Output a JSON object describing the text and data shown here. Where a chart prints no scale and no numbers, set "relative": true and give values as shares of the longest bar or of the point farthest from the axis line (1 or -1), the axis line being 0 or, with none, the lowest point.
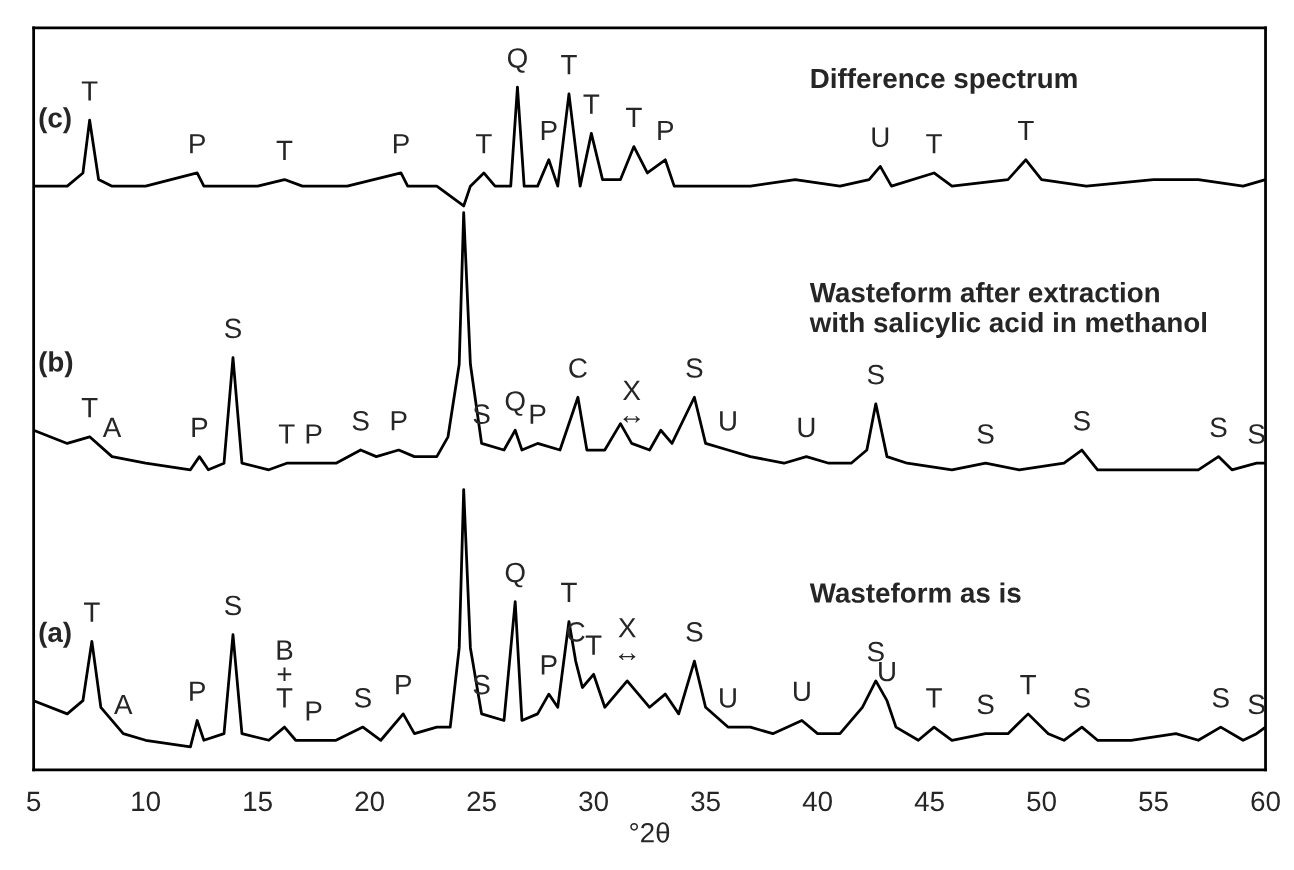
{
  "chart_data": {
    "type": "line",
    "relative": true,
    "xlabel": "°2θ",
    "xlim": [
      5,
      60
    ],
    "xticks": [
      5,
      10,
      15,
      20,
      25,
      30,
      35,
      40,
      45,
      50,
      55,
      60
    ],
    "tick_labels": "x",
    "grid": false,
    "legend": false,
    "series": [
      {
        "name": "(a)",
        "color": "#000000",
        "x": [
          5,
          6.5,
          7.2,
          7.6,
          8.0,
          9,
          10,
          12,
          12.3,
          12.6,
          13.5,
          13.9,
          14.3,
          15.5,
          16.2,
          16.7,
          17.5,
          18.5,
          19.7,
          20.5,
          21.5,
          22,
          23,
          23.6,
          24.0,
          24.2,
          24.5,
          25,
          26,
          26.5,
          26.8,
          27.5,
          28,
          28.4,
          28.9,
          29.2,
          29.5,
          30,
          30.5,
          31.5,
          32.5,
          33.2,
          33.8,
          34.5,
          35,
          36,
          37,
          38,
          39.3,
          40,
          41,
          42,
          42.6,
          43.1,
          43.5,
          44.5,
          45.2,
          46,
          47.5,
          48.5,
          49.4,
          50.3,
          51,
          51.8,
          52.5,
          54,
          56,
          57,
          58,
          59,
          59.6,
          60
        ],
        "values": [
          0.07,
          0.05,
          0.07,
          0.16,
          0.06,
          0.02,
          0.01,
          0,
          0.04,
          0.01,
          0.02,
          0.17,
          0.02,
          0.01,
          0.03,
          0.01,
          0.01,
          0.01,
          0.03,
          0.01,
          0.05,
          0.02,
          0.03,
          0.03,
          0.15,
          0.39,
          0.15,
          0.05,
          0.04,
          0.22,
          0.04,
          0.05,
          0.08,
          0.06,
          0.19,
          0.13,
          0.09,
          0.11,
          0.06,
          0.1,
          0.06,
          0.08,
          0.05,
          0.13,
          0.06,
          0.03,
          0.03,
          0.02,
          0.04,
          0.02,
          0.02,
          0.06,
          0.1,
          0.07,
          0.03,
          0.01,
          0.03,
          0.01,
          0.02,
          0.02,
          0.05,
          0.02,
          0.01,
          0.03,
          0.01,
          0.01,
          0.02,
          0.01,
          0.03,
          0.01,
          0.02,
          0.03
        ]
      },
      {
        "name": "(b)",
        "color": "#000000",
        "x": [
          5,
          6.5,
          7.5,
          8.5,
          10,
          12,
          12.4,
          12.8,
          13.5,
          13.9,
          14.3,
          15.5,
          16.3,
          17.5,
          18.5,
          19.6,
          20.3,
          21.3,
          22,
          23,
          23.5,
          24.0,
          24.2,
          24.5,
          25,
          26,
          26.5,
          26.8,
          27.5,
          28.5,
          29.3,
          29.7,
          30.5,
          31.2,
          31.7,
          32.5,
          33,
          33.5,
          34.5,
          35,
          36,
          37,
          38.5,
          39.5,
          40.5,
          41.5,
          42.2,
          42.6,
          43.1,
          44,
          46,
          47.5,
          49,
          51,
          51.8,
          52.5,
          55,
          57,
          57.9,
          58.5,
          59.6,
          60
        ],
        "values": [
          0.48,
          0.46,
          0.47,
          0.44,
          0.43,
          0.42,
          0.44,
          0.42,
          0.43,
          0.59,
          0.43,
          0.42,
          0.43,
          0.43,
          0.43,
          0.45,
          0.44,
          0.45,
          0.44,
          0.44,
          0.47,
          0.58,
          0.81,
          0.58,
          0.46,
          0.45,
          0.48,
          0.45,
          0.46,
          0.45,
          0.53,
          0.45,
          0.45,
          0.49,
          0.46,
          0.45,
          0.48,
          0.46,
          0.53,
          0.46,
          0.45,
          0.44,
          0.43,
          0.44,
          0.43,
          0.43,
          0.45,
          0.52,
          0.44,
          0.43,
          0.42,
          0.43,
          0.42,
          0.43,
          0.45,
          0.42,
          0.42,
          0.42,
          0.44,
          0.42,
          0.43,
          0.43
        ]
      },
      {
        "name": "(c)",
        "color": "#000000",
        "x": [
          5,
          6.5,
          7.2,
          7.5,
          7.9,
          8.5,
          10,
          12.3,
          12.6,
          14,
          15,
          16.2,
          17,
          19,
          21.4,
          21.7,
          23,
          24.2,
          24.5,
          25.1,
          25.6,
          26.3,
          26.6,
          26.9,
          27.5,
          28,
          28.4,
          28.9,
          29.4,
          29.9,
          30.4,
          31.2,
          31.8,
          32.4,
          33.2,
          33.6,
          35,
          37,
          39,
          41,
          42.3,
          42.8,
          43.3,
          45.2,
          46,
          48.5,
          49.3,
          50,
          52,
          55,
          57,
          59,
          60
        ],
        "values": [
          0.85,
          0.85,
          0.87,
          0.95,
          0.86,
          0.85,
          0.85,
          0.87,
          0.85,
          0.85,
          0.85,
          0.86,
          0.85,
          0.85,
          0.87,
          0.85,
          0.85,
          0.82,
          0.85,
          0.87,
          0.85,
          0.85,
          1,
          0.85,
          0.85,
          0.89,
          0.85,
          0.99,
          0.85,
          0.93,
          0.86,
          0.86,
          0.91,
          0.87,
          0.89,
          0.85,
          0.85,
          0.85,
          0.86,
          0.85,
          0.86,
          0.88,
          0.85,
          0.87,
          0.85,
          0.86,
          0.89,
          0.86,
          0.85,
          0.86,
          0.86,
          0.85,
          0.86
        ]
      }
    ],
    "annotations": [
      "Difference spectrum",
      "Wasteform after extraction\nwith salicylic acid in methanol",
      "Wasteform as is",
      {
        "text": "T",
        "x": 7.5,
        "y": 0.95
      },
      {
        "text": "P",
        "x": 12.3,
        "y": 0.87
      },
      {
        "text": "T",
        "x": 16.2,
        "y": 0.86
      },
      {
        "text": "P",
        "x": 21.4,
        "y": 0.87
      },
      {
        "text": "T",
        "x": 25.1,
        "y": 0.87
      },
      {
        "text": "Q",
        "x": 26.6,
        "y": 1
      },
      {
        "text": "P",
        "x": 28,
        "y": 0.89
      },
      {
        "text": "T",
        "x": 28.9,
        "y": 0.99
      },
      {
        "text": "T",
        "x": 29.9,
        "y": 0.93
      },
      {
        "text": "T",
        "x": 31.8,
        "y": 0.91
      },
      {
        "text": "P",
        "x": 33.2,
        "y": 0.89
      },
      {
        "text": "U",
        "x": 42.8,
        "y": 0.88
      },
      {
        "text": "T",
        "x": 45.2,
        "y": 0.87
      },
      {
        "text": "T",
        "x": 49.3,
        "y": 0.89
      },
      {
        "text": "S",
        "x": 25,
        "y": 0.46
      },
      {
        "text": "S",
        "x": 13.9,
        "y": 0.59
      },
      {
        "text": "T",
        "x": 7.5,
        "y": 0.47
      },
      {
        "text": "A",
        "x": 8.5,
        "y": 0.44
      },
      {
        "text": "P",
        "x": 12.4,
        "y": 0.44
      },
      {
        "text": "T",
        "x": 16.3,
        "y": 0.43
      },
      {
        "text": "P",
        "x": 17.5,
        "y": 0.43
      },
      {
        "text": "S",
        "x": 19.6,
        "y": 0.45
      },
      {
        "text": "P",
        "x": 21.3,
        "y": 0.45
      },
      {
        "text": "Q",
        "x": 26.5,
        "y": 0.48
      },
      {
        "text": "P",
        "x": 27.5,
        "y": 0.46
      },
      {
        "text": "C",
        "x": 29.3,
        "y": 0.53
      },
      {
        "text": "X\n↔",
        "x": 31.7,
        "y": 0.46
      },
      {
        "text": "S",
        "x": 34.5,
        "y": 0.53
      },
      {
        "text": "U",
        "x": 36,
        "y": 0.45
      },
      {
        "text": "U",
        "x": 39.5,
        "y": 0.44
      },
      {
        "text": "S",
        "x": 42.6,
        "y": 0.52
      },
      {
        "text": "S",
        "x": 47.5,
        "y": 0.43
      },
      {
        "text": "S",
        "x": 51.8,
        "y": 0.45
      },
      {
        "text": "S",
        "x": 57.9,
        "y": 0.44
      },
      {
        "text": "S",
        "x": 59.6,
        "y": 0.43
      },
      {
        "text": "S",
        "x": 25,
        "y": 0.05
      },
      {
        "text": "T",
        "x": 7.6,
        "y": 0.16
      },
      {
        "text": "A",
        "x": 9,
        "y": 0.02
      },
      {
        "text": "P",
        "x": 12.3,
        "y": 0.04
      },
      {
        "text": "S",
        "x": 13.9,
        "y": 0.17
      },
      {
        "text": "B\n+\nT",
        "x": 16.2,
        "y": 0.03
      },
      {
        "text": "P",
        "x": 17.5,
        "y": 0.01
      },
      {
        "text": "S",
        "x": 19.7,
        "y": 0.03
      },
      {
        "text": "P",
        "x": 21.5,
        "y": 0.05
      },
      {
        "text": "Q",
        "x": 26.5,
        "y": 0.22
      },
      {
        "text": "P",
        "x": 28,
        "y": 0.08
      },
      {
        "text": "T",
        "x": 28.9,
        "y": 0.19
      },
      {
        "text": "C",
        "x": 29.2,
        "y": 0.13
      },
      {
        "text": "T",
        "x": 30,
        "y": 0.11
      },
      {
        "text": "X\n↔",
        "x": 31.5,
        "y": 0.1
      },
      {
        "text": "S",
        "x": 34.5,
        "y": 0.13
      },
      {
        "text": "U",
        "x": 36,
        "y": 0.03
      },
      {
        "text": "U",
        "x": 39.3,
        "y": 0.04
      },
      {
        "text": "S",
        "x": 42.6,
        "y": 0.1
      },
      {
        "text": "U",
        "x": 43.1,
        "y": 0.07
      },
      {
        "text": "T",
        "x": 45.2,
        "y": 0.03
      },
      {
        "text": "S",
        "x": 47.5,
        "y": 0.02
      },
      {
        "text": "T",
        "x": 49.4,
        "y": 0.05
      },
      {
        "text": "S",
        "x": 51.8,
        "y": 0.03
      },
      {
        "text": "S",
        "x": 58,
        "y": 0.03
      },
      {
        "text": "S",
        "x": 59.6,
        "y": 0.02
      }
    ]
  }
}
